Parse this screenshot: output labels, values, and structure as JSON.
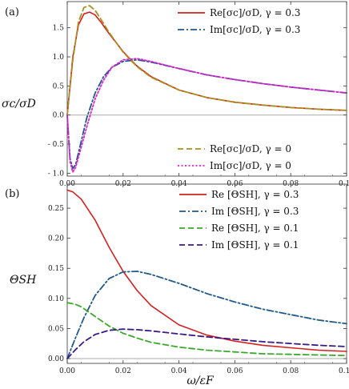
{
  "chart_data": [
    {
      "type": "line",
      "panel_label": "(a)",
      "ylabel": "σc/σD",
      "xlabel": "",
      "xlim": [
        0,
        0.1
      ],
      "ylim": [
        -1.05,
        1.95
      ],
      "x_ticks": [
        "0.00",
        "0.02",
        "0.04",
        "0.06",
        "0.08",
        "0.10"
      ],
      "y_ticks": [
        {
          "v": 1.5,
          "t": "1.5"
        },
        {
          "v": 1.0,
          "t": "1.0"
        },
        {
          "v": 0.5,
          "t": "0.5"
        },
        {
          "v": 0.0,
          "t": "0.0"
        },
        {
          "v": -0.5,
          "t": "- 0.5"
        },
        {
          "v": -1.0,
          "t": "- 1.0"
        }
      ],
      "legends": [
        {
          "position": "top-right",
          "entries": [
            {
              "label": "Re[σc]/σD,  γ = 0.3",
              "color": "#d61f1f",
              "dash": "solid"
            },
            {
              "label": "Im[σc]/σD,  γ = 0.3",
              "color": "#1f5a8a",
              "dash": "dashdot"
            }
          ]
        },
        {
          "position": "bottom-right",
          "entries": [
            {
              "label": "Re[σc]/σD,  γ = 0",
              "color": "#a8901a",
              "dash": "dashed"
            },
            {
              "label": "Im[σc]/σD,  γ = 0",
              "color": "#e020d0",
              "dash": "dotted"
            }
          ]
        }
      ],
      "series": [
        {
          "name": "Re[σc]/σD,  γ = 0.3",
          "color": "#d61f1f",
          "dash": "solid",
          "x": [
            0,
            0.002,
            0.004,
            0.006,
            0.008,
            0.01,
            0.012,
            0.015,
            0.02,
            0.025,
            0.03,
            0.04,
            0.05,
            0.06,
            0.07,
            0.08,
            0.09,
            0.1
          ],
          "y": [
            0,
            1.0,
            1.55,
            1.74,
            1.77,
            1.72,
            1.6,
            1.4,
            1.09,
            0.84,
            0.66,
            0.43,
            0.3,
            0.22,
            0.17,
            0.13,
            0.1,
            0.08
          ]
        },
        {
          "name": "Im[σc]/σD,  γ = 0.3",
          "color": "#1f5a8a",
          "dash": "dashdot",
          "x": [
            0,
            0.001,
            0.002,
            0.003,
            0.005,
            0.007,
            0.01,
            0.013,
            0.016,
            0.02,
            0.025,
            0.03,
            0.04,
            0.05,
            0.06,
            0.07,
            0.08,
            0.09,
            0.1
          ],
          "y": [
            0,
            -0.75,
            -0.92,
            -0.85,
            -0.45,
            -0.05,
            0.38,
            0.66,
            0.82,
            0.92,
            0.95,
            0.91,
            0.8,
            0.69,
            0.61,
            0.54,
            0.48,
            0.43,
            0.38
          ]
        },
        {
          "name": "Re[σc]/σD,  γ = 0",
          "color": "#a8901a",
          "dash": "dashed",
          "x": [
            0,
            0.002,
            0.004,
            0.006,
            0.008,
            0.01,
            0.012,
            0.015,
            0.02,
            0.025,
            0.03,
            0.04,
            0.05,
            0.06,
            0.07,
            0.08,
            0.09,
            0.1
          ],
          "y": [
            0,
            0.95,
            1.6,
            1.85,
            1.88,
            1.8,
            1.65,
            1.42,
            1.08,
            0.83,
            0.65,
            0.43,
            0.3,
            0.22,
            0.17,
            0.13,
            0.1,
            0.08
          ]
        },
        {
          "name": "Im[σc]/σD,  γ = 0",
          "color": "#e020d0",
          "dash": "dotted",
          "x": [
            0,
            0.001,
            0.002,
            0.003,
            0.005,
            0.007,
            0.01,
            0.013,
            0.016,
            0.02,
            0.025,
            0.03,
            0.04,
            0.05,
            0.06,
            0.07,
            0.08,
            0.09,
            0.1
          ],
          "y": [
            0,
            -0.8,
            -0.98,
            -0.9,
            -0.55,
            -0.2,
            0.28,
            0.6,
            0.82,
            0.95,
            0.97,
            0.92,
            0.8,
            0.69,
            0.61,
            0.54,
            0.48,
            0.43,
            0.38
          ]
        }
      ]
    },
    {
      "type": "line",
      "panel_label": "(b)",
      "ylabel": "ΘSH",
      "xlabel": "ω/εF",
      "xlim": [
        0,
        0.1
      ],
      "ylim": [
        -0.008,
        0.29
      ],
      "x_ticks": [
        "0.00",
        "0.02",
        "0.04",
        "0.06",
        "0.08",
        "0.10"
      ],
      "y_ticks": [
        {
          "v": 0.25,
          "t": "0.25"
        },
        {
          "v": 0.2,
          "t": "0.20"
        },
        {
          "v": 0.15,
          "t": "0.15"
        },
        {
          "v": 0.1,
          "t": "0.10"
        },
        {
          "v": 0.05,
          "t": "0.05"
        },
        {
          "v": 0.0,
          "t": "0.00"
        }
      ],
      "legends": [
        {
          "position": "top-right",
          "entries": [
            {
              "label": "Re [ΘSH],  γ = 0.3",
              "color": "#d61f1f",
              "dash": "solid"
            },
            {
              "label": "Im [ΘSH],  γ = 0.3",
              "color": "#1f5a8a",
              "dash": "dashdot"
            },
            {
              "label": "Re [ΘSH],  γ = 0.1",
              "color": "#3aa82a",
              "dash": "dashed"
            },
            {
              "label": "Im [ΘSH],  γ = 0.1",
              "color": "#3a1a8a",
              "dash": "dashed"
            }
          ]
        }
      ],
      "series": [
        {
          "name": "Re [ΘSH],  γ = 0.3",
          "color": "#d61f1f",
          "dash": "solid",
          "x": [
            0,
            0.002,
            0.005,
            0.01,
            0.015,
            0.02,
            0.025,
            0.03,
            0.04,
            0.05,
            0.06,
            0.07,
            0.08,
            0.09,
            0.1
          ],
          "y": [
            0.28,
            0.277,
            0.265,
            0.23,
            0.185,
            0.145,
            0.113,
            0.088,
            0.056,
            0.039,
            0.029,
            0.022,
            0.018,
            0.014,
            0.012
          ]
        },
        {
          "name": "Im [ΘSH],  γ = 0.3",
          "color": "#1f5a8a",
          "dash": "dashdot",
          "x": [
            0,
            0.003,
            0.006,
            0.01,
            0.015,
            0.02,
            0.025,
            0.03,
            0.04,
            0.05,
            0.06,
            0.07,
            0.08,
            0.09,
            0.1
          ],
          "y": [
            0,
            0.035,
            0.068,
            0.105,
            0.133,
            0.144,
            0.145,
            0.14,
            0.125,
            0.108,
            0.094,
            0.082,
            0.073,
            0.064,
            0.058
          ]
        },
        {
          "name": "Re [ΘSH],  γ = 0.1",
          "color": "#3aa82a",
          "dash": "dashed",
          "x": [
            0,
            0.003,
            0.005,
            0.01,
            0.015,
            0.02,
            0.025,
            0.03,
            0.04,
            0.05,
            0.06,
            0.07,
            0.08,
            0.09,
            0.1
          ],
          "y": [
            0.093,
            0.09,
            0.086,
            0.07,
            0.054,
            0.042,
            0.034,
            0.027,
            0.019,
            0.014,
            0.011,
            0.008,
            0.007,
            0.006,
            0.005
          ]
        },
        {
          "name": "Im [ΘSH],  γ = 0.1",
          "color": "#3a1a8a",
          "dash": "dashed",
          "x": [
            0,
            0.003,
            0.006,
            0.01,
            0.015,
            0.02,
            0.025,
            0.03,
            0.04,
            0.05,
            0.06,
            0.07,
            0.08,
            0.09,
            0.1
          ],
          "y": [
            0,
            0.015,
            0.028,
            0.04,
            0.047,
            0.049,
            0.048,
            0.046,
            0.041,
            0.036,
            0.032,
            0.028,
            0.025,
            0.022,
            0.02
          ]
        }
      ]
    }
  ]
}
